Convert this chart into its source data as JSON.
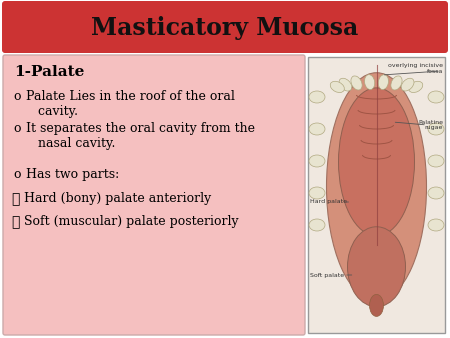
{
  "title": "Masticatory Mucosa",
  "title_bg_top": "#cc3333",
  "title_bg_bottom": "#991111",
  "title_text_color": "#111111",
  "slide_bg_color": "#ffffff",
  "content_box_color": "#f5c0c0",
  "content_box_border": "#ccaaaa",
  "heading": "1-Palate",
  "bullet_lines": [
    {
      "symbol": "o",
      "text": "Palate Lies in the roof of the oral\n   cavity."
    },
    {
      "symbol": "o",
      "text": "It separates the oral cavity from the\n   nasal cavity."
    },
    {
      "symbol": "o",
      "text": "Has two parts:"
    },
    {
      "symbol": "➤",
      "text": "Hard (bony) palate anteriorly"
    },
    {
      "symbol": "➤",
      "text": "Soft (muscular) palate posteriorly"
    }
  ],
  "font_size_title": 17,
  "font_size_heading": 11,
  "font_size_body": 9,
  "img_label_fontsize": 4.5,
  "palate_body_color": "#d4907a",
  "palate_inner_color": "#c87060",
  "palate_rugae_color": "#b86050",
  "soft_palate_color": "#c07060",
  "tooth_color": "#e8e4d0",
  "tooth_edge_color": "#b0a880",
  "img_bg_color": "#f0e8e0",
  "img_border_color": "#999999"
}
